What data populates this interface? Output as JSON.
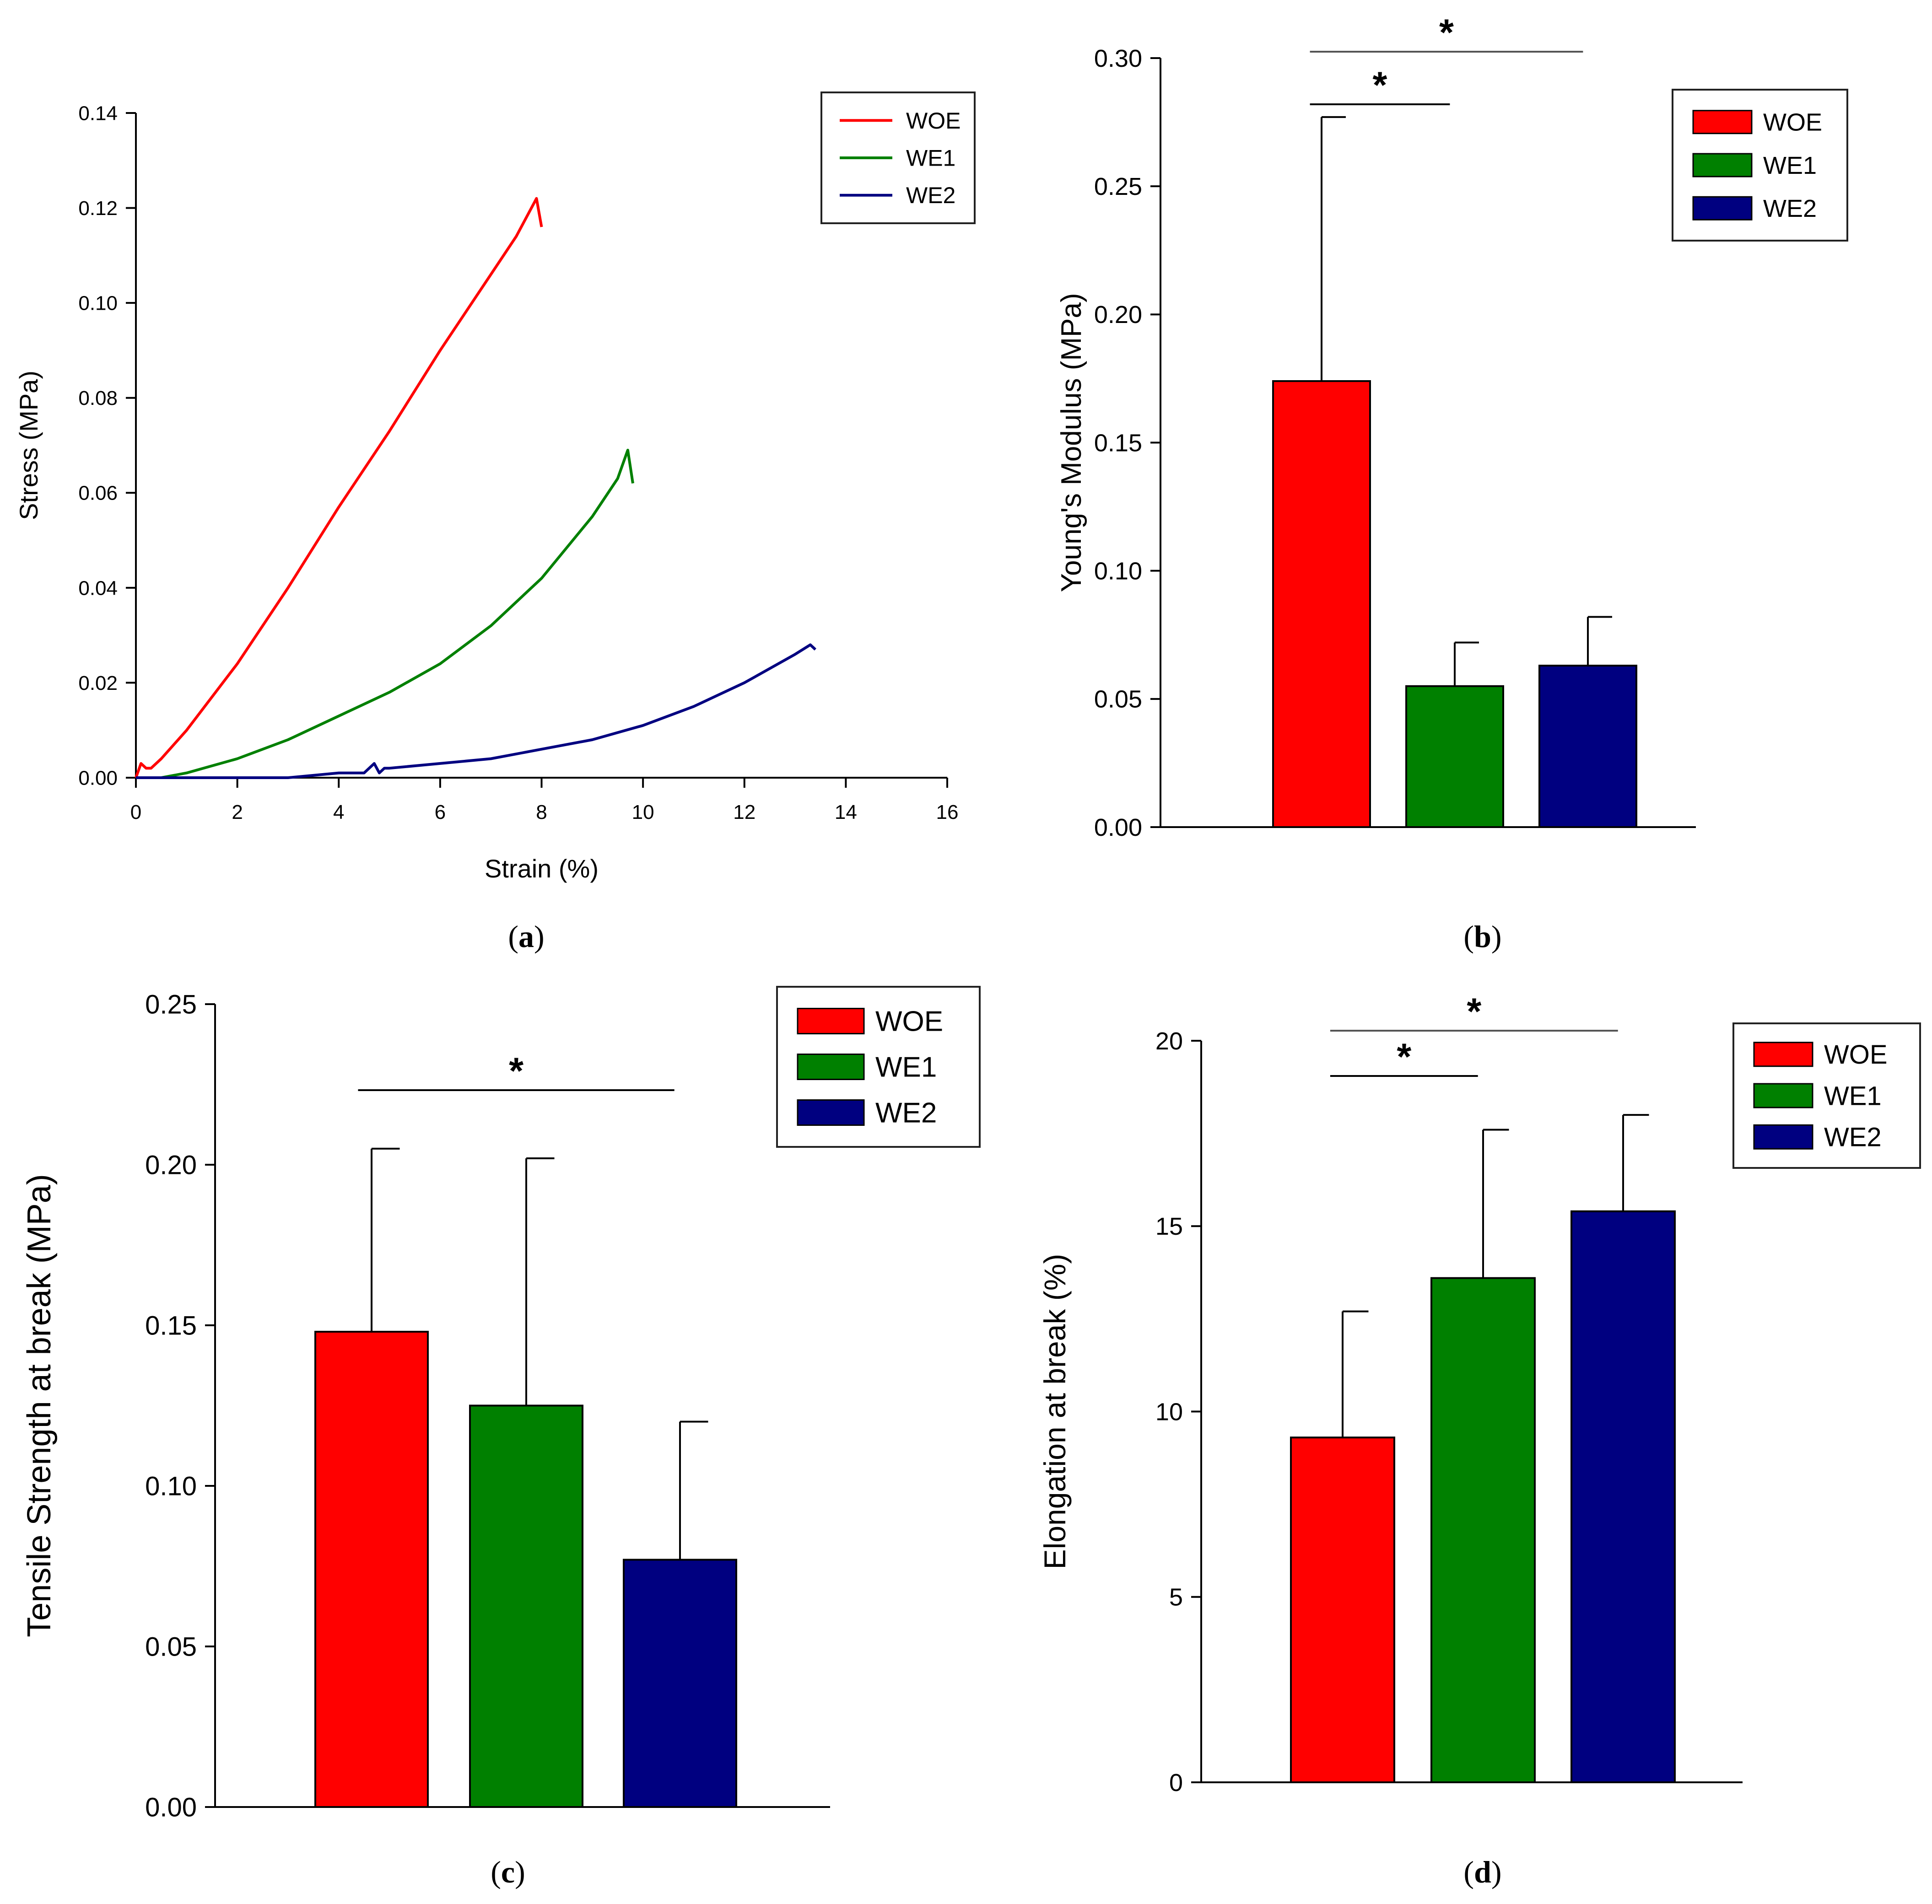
{
  "colors": {
    "WOE": "#ff0000",
    "WE1": "#008000",
    "WE2": "#000080",
    "axis": "#000000",
    "frame": "#222222"
  },
  "chart_data": [
    {
      "id": "a",
      "type": "line",
      "caption": {
        "open": "(",
        "letter": "a",
        "close": ")"
      },
      "xlabel": "Strain (%)",
      "ylabel": "Stress (MPa)",
      "xlim": [
        0,
        16
      ],
      "ylim": [
        0,
        0.14
      ],
      "xticks": [
        "0",
        "2",
        "4",
        "6",
        "8",
        "10",
        "12",
        "14",
        "16"
      ],
      "yticks": [
        "0.00",
        "0.02",
        "0.04",
        "0.06",
        "0.08",
        "0.10",
        "0.12",
        "0.14"
      ],
      "legend": "top-right",
      "series": [
        {
          "name": "WOE",
          "color_key": "WOE",
          "x": [
            0,
            0.1,
            0.2,
            0.3,
            0.5,
            1,
            2,
            3,
            4,
            5,
            6,
            7,
            7.5,
            7.8,
            7.9,
            8.0
          ],
          "y": [
            0,
            0.003,
            0.002,
            0.002,
            0.004,
            0.01,
            0.024,
            0.04,
            0.057,
            0.073,
            0.09,
            0.106,
            0.114,
            0.12,
            0.122,
            0.116
          ]
        },
        {
          "name": "WE1",
          "color_key": "WE1",
          "x": [
            0,
            0.5,
            1,
            2,
            3,
            4,
            5,
            6,
            7,
            8,
            9,
            9.5,
            9.7,
            9.8
          ],
          "y": [
            0,
            0,
            0.001,
            0.004,
            0.008,
            0.013,
            0.018,
            0.024,
            0.032,
            0.042,
            0.055,
            0.063,
            0.069,
            0.062
          ]
        },
        {
          "name": "WE2",
          "color_key": "WE2",
          "x": [
            0,
            2,
            3,
            4,
            4.5,
            4.7,
            4.8,
            4.9,
            5,
            6,
            7,
            8,
            9,
            10,
            11,
            12,
            13,
            13.3,
            13.4
          ],
          "y": [
            0,
            0,
            0,
            0.001,
            0.001,
            0.003,
            0.001,
            0.002,
            0.002,
            0.003,
            0.004,
            0.006,
            0.008,
            0.011,
            0.015,
            0.02,
            0.026,
            0.028,
            0.027
          ]
        }
      ]
    },
    {
      "id": "b",
      "type": "bar",
      "caption": {
        "open": "(",
        "letter": "b",
        "close": ")"
      },
      "ylabel": "Young's Modulus (MPa)",
      "ylim": [
        0,
        0.3
      ],
      "yticks": [
        "0.00",
        "0.05",
        "0.10",
        "0.15",
        "0.20",
        "0.25",
        "0.30"
      ],
      "categories": [
        "WOE",
        "WE1",
        "WE2"
      ],
      "values": [
        0.174,
        0.055,
        0.063
      ],
      "errors": [
        0.103,
        0.017,
        0.019
      ],
      "significance": [
        {
          "from": 0,
          "to": 1,
          "label": "*"
        },
        {
          "from": 0,
          "to": 2,
          "label": "*"
        }
      ],
      "legend": "top-right"
    },
    {
      "id": "c",
      "type": "bar",
      "caption": {
        "open": "(",
        "letter": "c",
        "close": ")"
      },
      "ylabel": "Tensile Strength at break (MPa)",
      "ylim": [
        0,
        0.25
      ],
      "yticks": [
        "0.00",
        "0.05",
        "0.10",
        "0.15",
        "0.20",
        "0.25"
      ],
      "categories": [
        "WOE",
        "WE1",
        "WE2"
      ],
      "values": [
        0.148,
        0.125,
        0.077
      ],
      "errors": [
        0.057,
        0.077,
        0.043
      ],
      "significance": [
        {
          "from": 0,
          "to": 2,
          "label": "*"
        }
      ],
      "legend": "top-right"
    },
    {
      "id": "d",
      "type": "bar",
      "caption": {
        "open": "(",
        "letter": "d",
        "close": ")"
      },
      "ylabel": "Elongation at break (%)",
      "ylim": [
        0,
        20
      ],
      "yticks": [
        "0",
        "5",
        "10",
        "15",
        "20"
      ],
      "categories": [
        "WOE",
        "WE1",
        "WE2"
      ],
      "values": [
        9.3,
        13.6,
        15.4
      ],
      "errors": [
        3.4,
        4.0,
        2.6
      ],
      "significance": [
        {
          "from": 0,
          "to": 1,
          "label": "*"
        },
        {
          "from": 0,
          "to": 2,
          "label": "*"
        }
      ],
      "legend": "top-right"
    }
  ]
}
